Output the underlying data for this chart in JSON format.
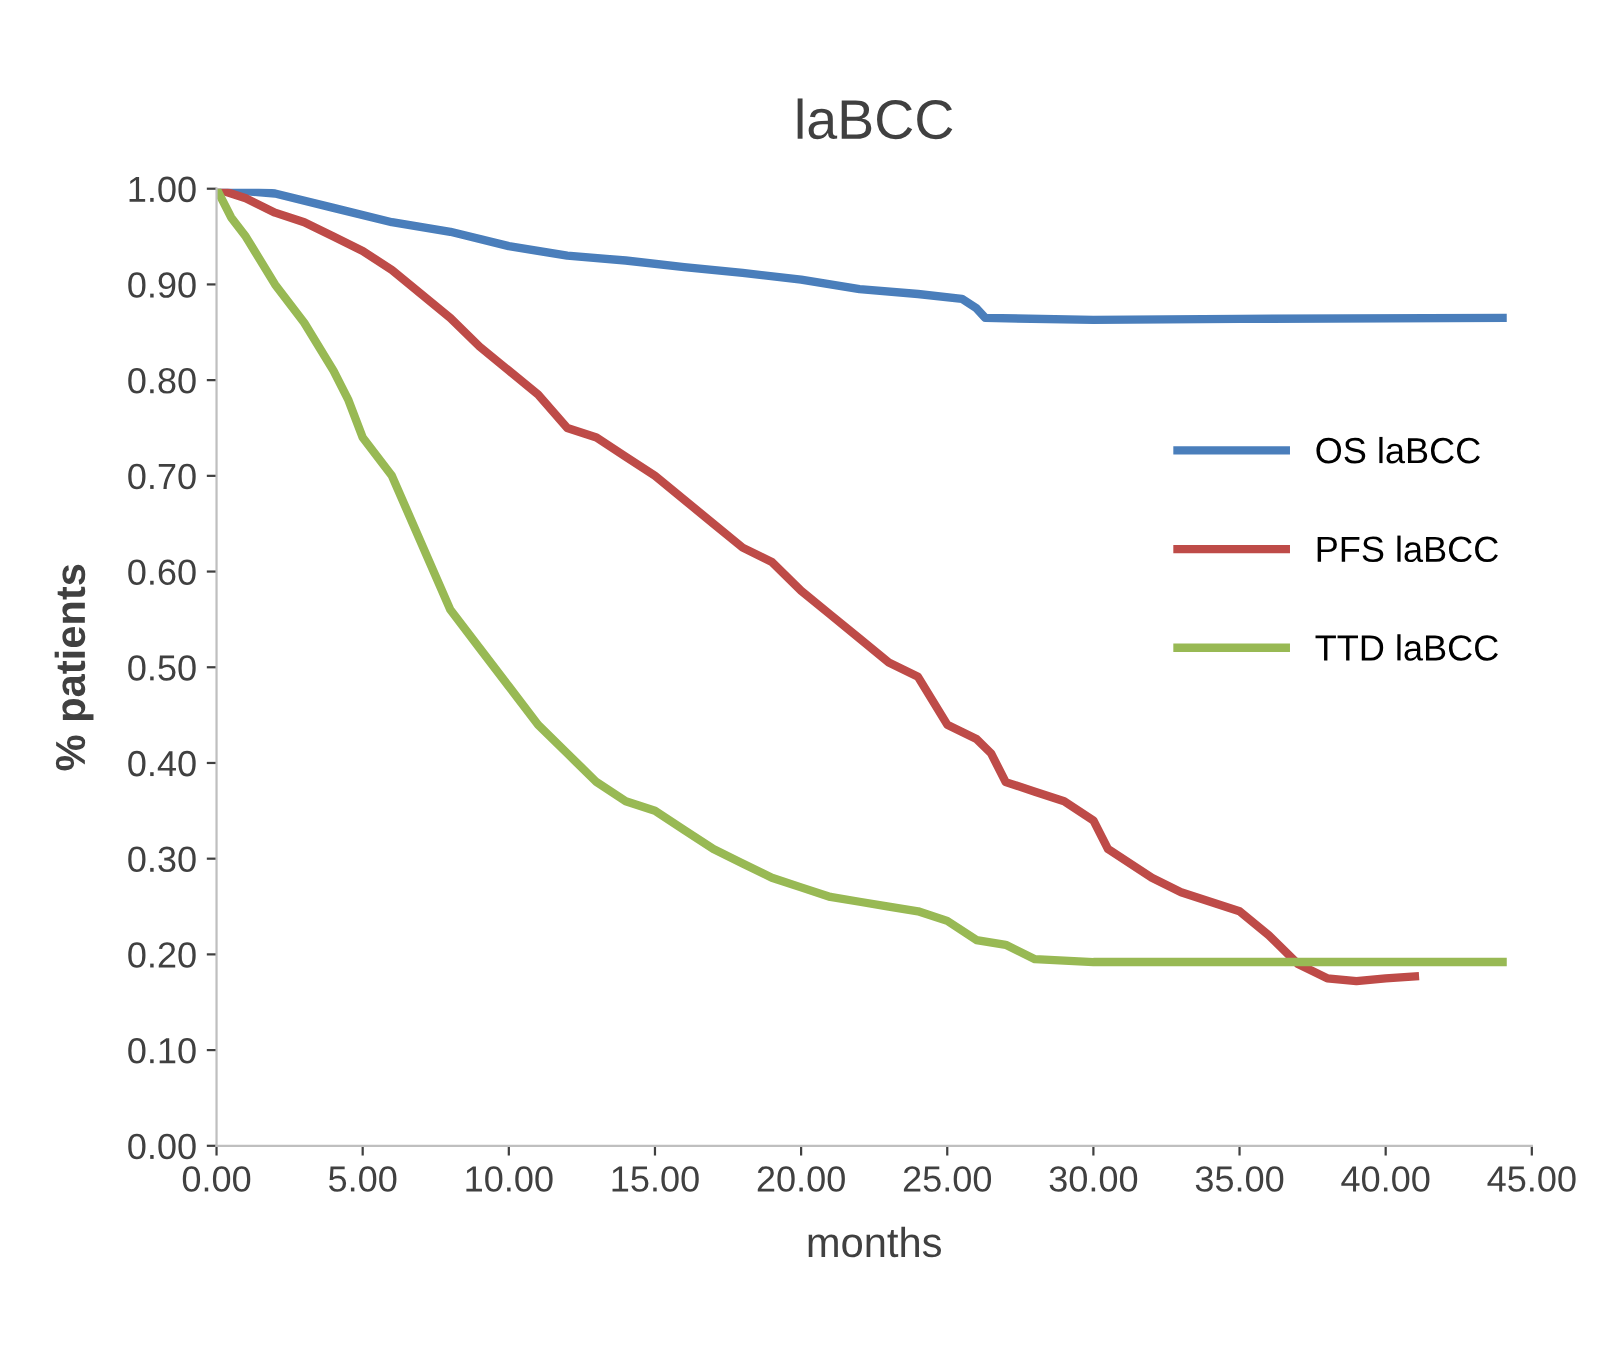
{
  "chart_data": {
    "type": "line",
    "title": "laBCC",
    "xlabel": "months",
    "ylabel": "% patients",
    "xlim": [
      0,
      45
    ],
    "xticks": [
      {
        "value": 0,
        "label": "0.00"
      },
      {
        "value": 5,
        "label": "5.00"
      },
      {
        "value": 10,
        "label": "10.00"
      },
      {
        "value": 15,
        "label": "15.00"
      },
      {
        "value": 20,
        "label": "20.00"
      },
      {
        "value": 25,
        "label": "25.00"
      },
      {
        "value": 30,
        "label": "30.00"
      },
      {
        "value": 35,
        "label": "35.00"
      },
      {
        "value": 40,
        "label": "40.00"
      },
      {
        "value": 45,
        "label": "45.00"
      }
    ],
    "ylim": [
      0,
      1
    ],
    "yticks": [
      {
        "value": 0,
        "label": "0.00"
      },
      {
        "value": 0.1,
        "label": "0.10"
      },
      {
        "value": 0.2,
        "label": "0.20"
      },
      {
        "value": 0.3,
        "label": "0.30"
      },
      {
        "value": 0.4,
        "label": "0.40"
      },
      {
        "value": 0.5,
        "label": "0.50"
      },
      {
        "value": 0.6,
        "label": "0.60"
      },
      {
        "value": 0.7,
        "label": "0.70"
      },
      {
        "value": 0.8,
        "label": "0.80"
      },
      {
        "value": 0.9,
        "label": "0.90"
      },
      {
        "value": 1,
        "label": "1.00"
      }
    ],
    "grid": false,
    "legend": "right",
    "marker": "none",
    "line_style": "solid",
    "series": [
      {
        "name": "OS laBCC",
        "color": "#4a7ebb",
        "x": [
          0,
          2,
          4,
          6,
          8,
          10,
          12,
          14,
          16,
          18,
          20,
          22,
          24,
          25.5,
          26,
          26.3,
          30,
          35,
          44
        ],
        "values": [
          1.0,
          0.995,
          0.98,
          0.965,
          0.955,
          0.94,
          0.93,
          0.925,
          0.918,
          0.912,
          0.905,
          0.895,
          0.89,
          0.885,
          0.875,
          0.865,
          0.863,
          0.864,
          0.865
        ]
      },
      {
        "name": "PFS laBCC",
        "color": "#be4b48",
        "x": [
          0,
          1,
          2,
          3,
          4,
          5,
          6,
          7,
          8,
          9,
          10,
          11,
          12,
          13,
          14,
          15,
          16,
          17,
          18,
          19,
          20,
          21,
          22,
          23,
          24,
          25,
          26,
          26.5,
          27,
          28,
          29,
          30,
          30.5,
          32,
          33,
          35,
          36,
          37,
          38,
          39,
          40,
          41
        ],
        "values": [
          1.0,
          0.99,
          0.975,
          0.965,
          0.95,
          0.935,
          0.915,
          0.89,
          0.865,
          0.835,
          0.81,
          0.785,
          0.75,
          0.74,
          0.72,
          0.7,
          0.675,
          0.65,
          0.625,
          0.61,
          0.58,
          0.555,
          0.53,
          0.505,
          0.49,
          0.44,
          0.425,
          0.41,
          0.38,
          0.37,
          0.36,
          0.34,
          0.31,
          0.28,
          0.265,
          0.245,
          0.22,
          0.19,
          0.175,
          0.172,
          0.175,
          0.177
        ]
      },
      {
        "name": "TTD laBCC",
        "color": "#98b954",
        "x": [
          0,
          0.5,
          1,
          2,
          3,
          4,
          4.5,
          5,
          6,
          7,
          8,
          9,
          10,
          11,
          12,
          13,
          14,
          15,
          16,
          17,
          18,
          19,
          20,
          21,
          22,
          23,
          24,
          25,
          26,
          27,
          28,
          30,
          35,
          44
        ],
        "values": [
          1.0,
          0.97,
          0.95,
          0.9,
          0.86,
          0.81,
          0.78,
          0.74,
          0.7,
          0.63,
          0.56,
          0.52,
          0.48,
          0.44,
          0.41,
          0.38,
          0.36,
          0.35,
          0.33,
          0.31,
          0.295,
          0.28,
          0.27,
          0.26,
          0.255,
          0.25,
          0.245,
          0.235,
          0.215,
          0.21,
          0.195,
          0.192,
          0.192,
          0.192
        ]
      }
    ]
  }
}
